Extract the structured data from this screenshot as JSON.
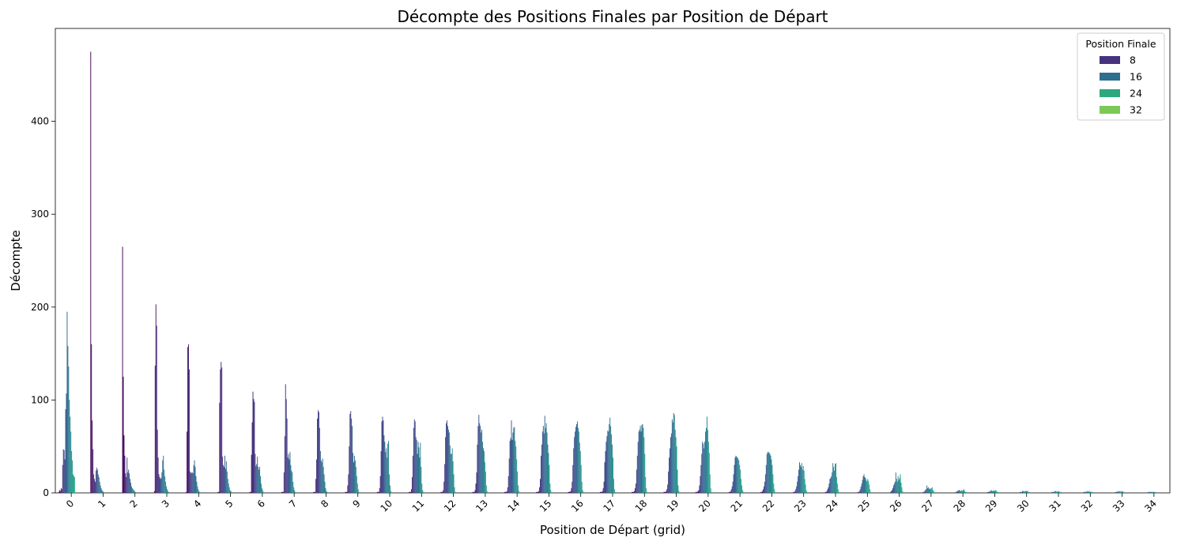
{
  "chart_data": {
    "type": "bar",
    "title": "Décompte des Positions Finales par Position de Départ",
    "xlabel": "Position de Départ (grid)",
    "ylabel": "Décompte",
    "categories": [
      "0",
      "1",
      "2",
      "3",
      "4",
      "5",
      "6",
      "7",
      "8",
      "9",
      "10",
      "11",
      "12",
      "13",
      "14",
      "15",
      "16",
      "17",
      "18",
      "19",
      "20",
      "21",
      "22",
      "23",
      "24",
      "25",
      "26",
      "27",
      "28",
      "29",
      "30",
      "31",
      "32",
      "33",
      "34"
    ],
    "ylim": [
      0,
      500
    ],
    "yticks": [
      0,
      100,
      200,
      300,
      400
    ],
    "legend": {
      "title": "Position Finale",
      "placement": "top-right",
      "entries": [
        {
          "label": "8",
          "color": "#46337e"
        },
        {
          "label": "16",
          "color": "#2e6f8e"
        },
        {
          "label": "24",
          "color": "#2ba87c"
        },
        {
          "label": "32",
          "color": "#7cc957"
        }
      ]
    },
    "finish_positions": 34,
    "palette": [
      "#440154",
      "#482173",
      "#433e85",
      "#38588c",
      "#2d708e",
      "#25858e",
      "#1e9b8a",
      "#2ab07f",
      "#52c569",
      "#86d549",
      "#c2df23",
      "#fde725"
    ],
    "series_by_start": [
      [
        1,
        3,
        2,
        5,
        4,
        30,
        47,
        46,
        36,
        90,
        107,
        195,
        158,
        136,
        100,
        82,
        66,
        45,
        35,
        20,
        18,
        17,
        0,
        0,
        0,
        0,
        0,
        0,
        0,
        0,
        0,
        0,
        0,
        0
      ],
      [
        475,
        160,
        78,
        47,
        20,
        15,
        12,
        24,
        27,
        25,
        20,
        17,
        12,
        8,
        5,
        3,
        2,
        1,
        0,
        0,
        0,
        0,
        0,
        0,
        0,
        0,
        0,
        0,
        0,
        0,
        0,
        0,
        0,
        0
      ],
      [
        265,
        125,
        62,
        40,
        21,
        17,
        38,
        22,
        25,
        21,
        15,
        11,
        7,
        5,
        4,
        3,
        2,
        1,
        0,
        0,
        0,
        0,
        0,
        0,
        0,
        0,
        0,
        0,
        0,
        0,
        0,
        0,
        0,
        0
      ],
      [
        2,
        137,
        203,
        180,
        68,
        38,
        20,
        17,
        15,
        16,
        22,
        35,
        40,
        25,
        18,
        12,
        7,
        4,
        2,
        1,
        0,
        0,
        0,
        0,
        0,
        0,
        0,
        0,
        0,
        0,
        0,
        0,
        0,
        0
      ],
      [
        1,
        66,
        157,
        160,
        133,
        23,
        21,
        22,
        22,
        21,
        30,
        35,
        28,
        18,
        12,
        7,
        4,
        2,
        1,
        0,
        0,
        0,
        0,
        0,
        0,
        0,
        0,
        0,
        0,
        0,
        0,
        0,
        0,
        0
      ],
      [
        1,
        1,
        97,
        133,
        141,
        135,
        39,
        30,
        28,
        40,
        26,
        34,
        23,
        15,
        10,
        6,
        3,
        2,
        1,
        0,
        0,
        0,
        0,
        0,
        0,
        0,
        0,
        0,
        0,
        0,
        0,
        0,
        0,
        0
      ],
      [
        1,
        1,
        41,
        76,
        109,
        101,
        98,
        42,
        29,
        31,
        39,
        28,
        25,
        28,
        18,
        10,
        5,
        3,
        1,
        0,
        0,
        0,
        0,
        0,
        0,
        0,
        0,
        0,
        0,
        0,
        0,
        0,
        0,
        0
      ],
      [
        1,
        1,
        1,
        22,
        61,
        117,
        101,
        80,
        38,
        42,
        36,
        44,
        30,
        24,
        22,
        12,
        6,
        3,
        1,
        0,
        0,
        0,
        0,
        0,
        0,
        0,
        0,
        0,
        0,
        0,
        0,
        0,
        0,
        0
      ],
      [
        1,
        1,
        1,
        15,
        36,
        80,
        89,
        87,
        70,
        45,
        35,
        33,
        37,
        28,
        20,
        12,
        5,
        2,
        1,
        0,
        0,
        0,
        0,
        0,
        0,
        0,
        0,
        0,
        0,
        0,
        0,
        0,
        0,
        0
      ],
      [
        1,
        1,
        1,
        8,
        20,
        50,
        85,
        88,
        80,
        72,
        43,
        33,
        40,
        35,
        28,
        18,
        10,
        4,
        1,
        0,
        0,
        0,
        0,
        0,
        0,
        0,
        0,
        0,
        0,
        0,
        0,
        0,
        0,
        0
      ],
      [
        1,
        1,
        1,
        5,
        18,
        45,
        77,
        82,
        78,
        62,
        55,
        44,
        48,
        38,
        53,
        56,
        20,
        8,
        2,
        0,
        0,
        0,
        0,
        0,
        0,
        0,
        0,
        0,
        0,
        0,
        0,
        0,
        0,
        0
      ],
      [
        1,
        1,
        1,
        4,
        17,
        40,
        70,
        79,
        77,
        60,
        57,
        42,
        55,
        49,
        38,
        54,
        28,
        10,
        3,
        1,
        0,
        0,
        0,
        0,
        0,
        0,
        0,
        0,
        0,
        0,
        0,
        0,
        0,
        0
      ],
      [
        1,
        1,
        1,
        3,
        12,
        31,
        60,
        75,
        78,
        72,
        68,
        65,
        51,
        42,
        42,
        48,
        34,
        20,
        6,
        1,
        0,
        0,
        0,
        0,
        0,
        0,
        0,
        0,
        0,
        0,
        0,
        0,
        0,
        0
      ],
      [
        1,
        1,
        1,
        3,
        10,
        22,
        52,
        72,
        84,
        75,
        72,
        65,
        68,
        55,
        48,
        45,
        33,
        23,
        8,
        2,
        0,
        0,
        0,
        0,
        0,
        0,
        0,
        0,
        0,
        0,
        0,
        0,
        0,
        0
      ],
      [
        1,
        1,
        1,
        2,
        6,
        18,
        37,
        56,
        59,
        78,
        57,
        65,
        70,
        71,
        56,
        50,
        36,
        23,
        8,
        2,
        0,
        0,
        0,
        0,
        0,
        0,
        0,
        0,
        0,
        0,
        0,
        0,
        0,
        0
      ],
      [
        1,
        1,
        1,
        2,
        6,
        15,
        40,
        52,
        66,
        72,
        64,
        83,
        70,
        75,
        65,
        52,
        43,
        30,
        10,
        3,
        0,
        0,
        0,
        0,
        0,
        0,
        0,
        0,
        0,
        0,
        0,
        0,
        0,
        0
      ],
      [
        1,
        1,
        1,
        2,
        5,
        12,
        30,
        48,
        60,
        66,
        71,
        74,
        77,
        70,
        66,
        54,
        45,
        30,
        12,
        3,
        1,
        0,
        0,
        0,
        0,
        0,
        0,
        0,
        0,
        0,
        0,
        0,
        0,
        0
      ],
      [
        1,
        1,
        1,
        2,
        5,
        12,
        33,
        45,
        55,
        61,
        67,
        66,
        74,
        81,
        72,
        63,
        52,
        38,
        15,
        4,
        1,
        0,
        0,
        0,
        0,
        0,
        0,
        0,
        0,
        0,
        0,
        0,
        0,
        0
      ],
      [
        1,
        1,
        1,
        2,
        5,
        10,
        25,
        40,
        55,
        66,
        68,
        72,
        66,
        73,
        74,
        70,
        60,
        42,
        17,
        5,
        1,
        0,
        0,
        0,
        0,
        0,
        0,
        0,
        0,
        0,
        0,
        0,
        0,
        0
      ],
      [
        1,
        1,
        1,
        2,
        4,
        9,
        23,
        38,
        48,
        60,
        64,
        79,
        76,
        86,
        84,
        68,
        60,
        50,
        25,
        8,
        2,
        0,
        0,
        0,
        0,
        0,
        0,
        0,
        0,
        0,
        0,
        0,
        0,
        0
      ],
      [
        1,
        1,
        1,
        2,
        3,
        8,
        18,
        30,
        42,
        55,
        53,
        48,
        55,
        66,
        70,
        82,
        68,
        55,
        43,
        20,
        5,
        1,
        0,
        0,
        0,
        0,
        0,
        0,
        0,
        0,
        0,
        0,
        0,
        0
      ],
      [
        0,
        0,
        1,
        1,
        2,
        4,
        7,
        12,
        20,
        30,
        38,
        40,
        39,
        38,
        37,
        35,
        30,
        25,
        15,
        8,
        3,
        1,
        0,
        0,
        0,
        0,
        0,
        0,
        0,
        0,
        0,
        0,
        0,
        0
      ],
      [
        0,
        0,
        1,
        1,
        2,
        4,
        7,
        12,
        20,
        30,
        42,
        44,
        44,
        43,
        42,
        40,
        36,
        30,
        20,
        10,
        4,
        1,
        0,
        0,
        0,
        0,
        0,
        0,
        0,
        0,
        0,
        0,
        0,
        0
      ],
      [
        0,
        0,
        0,
        1,
        1,
        2,
        4,
        7,
        12,
        18,
        25,
        33,
        30,
        28,
        32,
        25,
        29,
        24,
        15,
        9,
        3,
        1,
        0,
        0,
        0,
        0,
        0,
        0,
        0,
        0,
        0,
        0,
        0,
        0
      ],
      [
        0,
        0,
        0,
        1,
        1,
        2,
        4,
        6,
        10,
        15,
        16,
        18,
        22,
        32,
        28,
        24,
        31,
        32,
        17,
        10,
        4,
        1,
        0,
        0,
        0,
        0,
        0,
        0,
        0,
        0,
        0,
        0,
        0,
        0
      ],
      [
        0,
        0,
        0,
        0,
        1,
        1,
        2,
        4,
        7,
        10,
        14,
        18,
        20,
        17,
        16,
        14,
        12,
        15,
        13,
        9,
        4,
        1,
        0,
        0,
        0,
        0,
        0,
        0,
        0,
        0,
        0,
        0,
        0,
        0
      ],
      [
        0,
        0,
        0,
        0,
        0,
        1,
        2,
        3,
        5,
        8,
        10,
        12,
        22,
        15,
        12,
        18,
        14,
        16,
        20,
        11,
        6,
        2,
        0,
        0,
        0,
        0,
        0,
        0,
        0,
        0,
        0,
        0,
        0,
        0
      ],
      [
        0,
        0,
        0,
        0,
        0,
        0,
        1,
        1,
        2,
        3,
        4,
        8,
        5,
        6,
        4,
        5,
        4,
        5,
        6,
        3,
        2,
        1,
        0,
        0,
        0,
        0,
        0,
        0,
        0,
        0,
        0,
        0,
        0,
        0
      ],
      [
        0,
        0,
        0,
        0,
        0,
        0,
        0,
        1,
        1,
        2,
        2,
        3,
        3,
        2,
        2,
        3,
        2,
        3,
        4,
        2,
        1,
        1,
        0,
        0,
        0,
        0,
        0,
        0,
        0,
        0,
        0,
        0,
        0,
        0
      ],
      [
        0,
        0,
        0,
        0,
        0,
        0,
        0,
        1,
        1,
        1,
        2,
        2,
        3,
        2,
        2,
        2,
        3,
        2,
        3,
        2,
        1,
        1,
        0,
        0,
        0,
        0,
        0,
        0,
        0,
        0,
        0,
        0,
        0,
        0
      ],
      [
        0,
        0,
        0,
        0,
        0,
        0,
        0,
        0,
        1,
        1,
        1,
        2,
        2,
        1,
        2,
        2,
        2,
        2,
        2,
        1,
        1,
        0,
        0,
        0,
        0,
        0,
        0,
        0,
        0,
        0,
        0,
        0,
        0,
        0
      ],
      [
        0,
        0,
        0,
        0,
        0,
        0,
        0,
        0,
        1,
        1,
        1,
        1,
        2,
        2,
        1,
        2,
        1,
        2,
        1,
        1,
        1,
        0,
        0,
        0,
        0,
        0,
        0,
        0,
        0,
        0,
        0,
        0,
        0,
        0
      ],
      [
        0,
        0,
        0,
        0,
        0,
        0,
        0,
        0,
        1,
        1,
        1,
        1,
        2,
        1,
        2,
        1,
        2,
        1,
        1,
        1,
        1,
        0,
        0,
        0,
        0,
        0,
        0,
        0,
        0,
        0,
        0,
        0,
        0,
        0
      ],
      [
        0,
        0,
        0,
        0,
        0,
        0,
        0,
        0,
        1,
        1,
        1,
        2,
        1,
        2,
        1,
        2,
        1,
        2,
        1,
        1,
        0,
        0,
        0,
        0,
        0,
        0,
        0,
        0,
        0,
        0,
        0,
        0,
        0,
        0
      ],
      [
        0,
        0,
        0,
        0,
        0,
        0,
        0,
        0,
        0,
        1,
        1,
        1,
        1,
        1,
        1,
        1,
        1,
        1,
        1,
        0,
        0,
        0,
        0,
        0,
        0,
        0,
        0,
        0,
        0,
        0,
        0,
        0,
        0,
        0
      ]
    ]
  }
}
